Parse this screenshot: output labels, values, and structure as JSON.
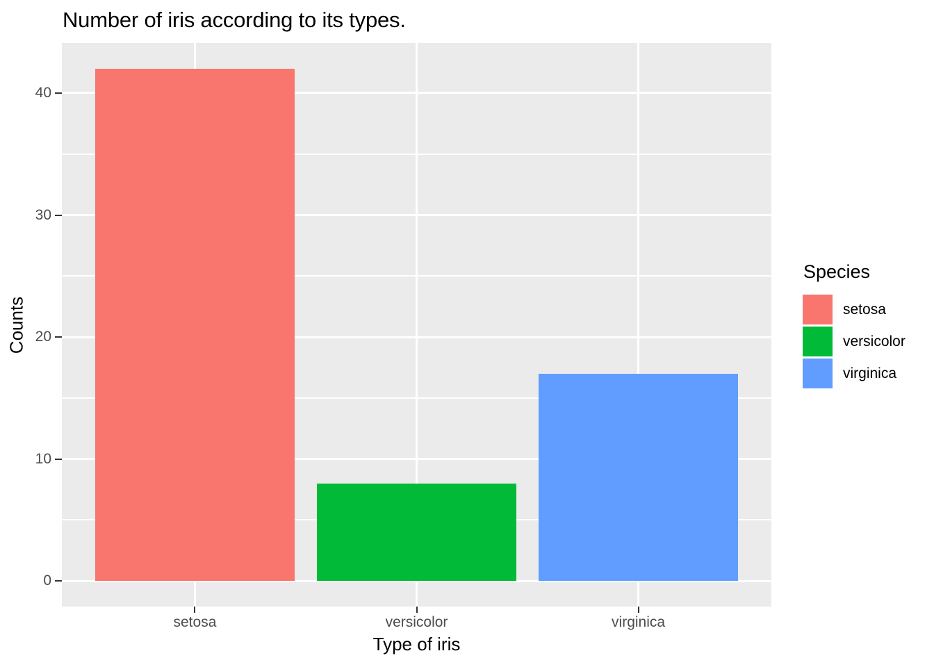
{
  "chart_data": {
    "type": "bar",
    "title": "Number of iris according to its types.",
    "xlabel": "Type of iris",
    "ylabel": "Counts",
    "categories": [
      "setosa",
      "versicolor",
      "virginica"
    ],
    "values": [
      42,
      8,
      17
    ],
    "bar_colors": [
      "#F8766D",
      "#00BA38",
      "#619CFF"
    ],
    "y_ticks": [
      0,
      10,
      20,
      30,
      40
    ],
    "y_minor_gridlines": [
      5,
      15,
      25,
      35
    ],
    "ylim": [
      0,
      42
    ],
    "grid": "on",
    "legend": {
      "title": "Species",
      "position": "right",
      "entries": [
        {
          "label": "setosa",
          "color": "#F8766D"
        },
        {
          "label": "versicolor",
          "color": "#00BA38"
        },
        {
          "label": "virginica",
          "color": "#619CFF"
        }
      ]
    },
    "theme": {
      "panel_background": "#EBEBEB",
      "gridline_color": "#FFFFFF",
      "tick_label_color": "#4D4D4D",
      "axis_tick_color": "#333333",
      "text_color": "#000000",
      "page_background": "#FFFFFF"
    }
  }
}
